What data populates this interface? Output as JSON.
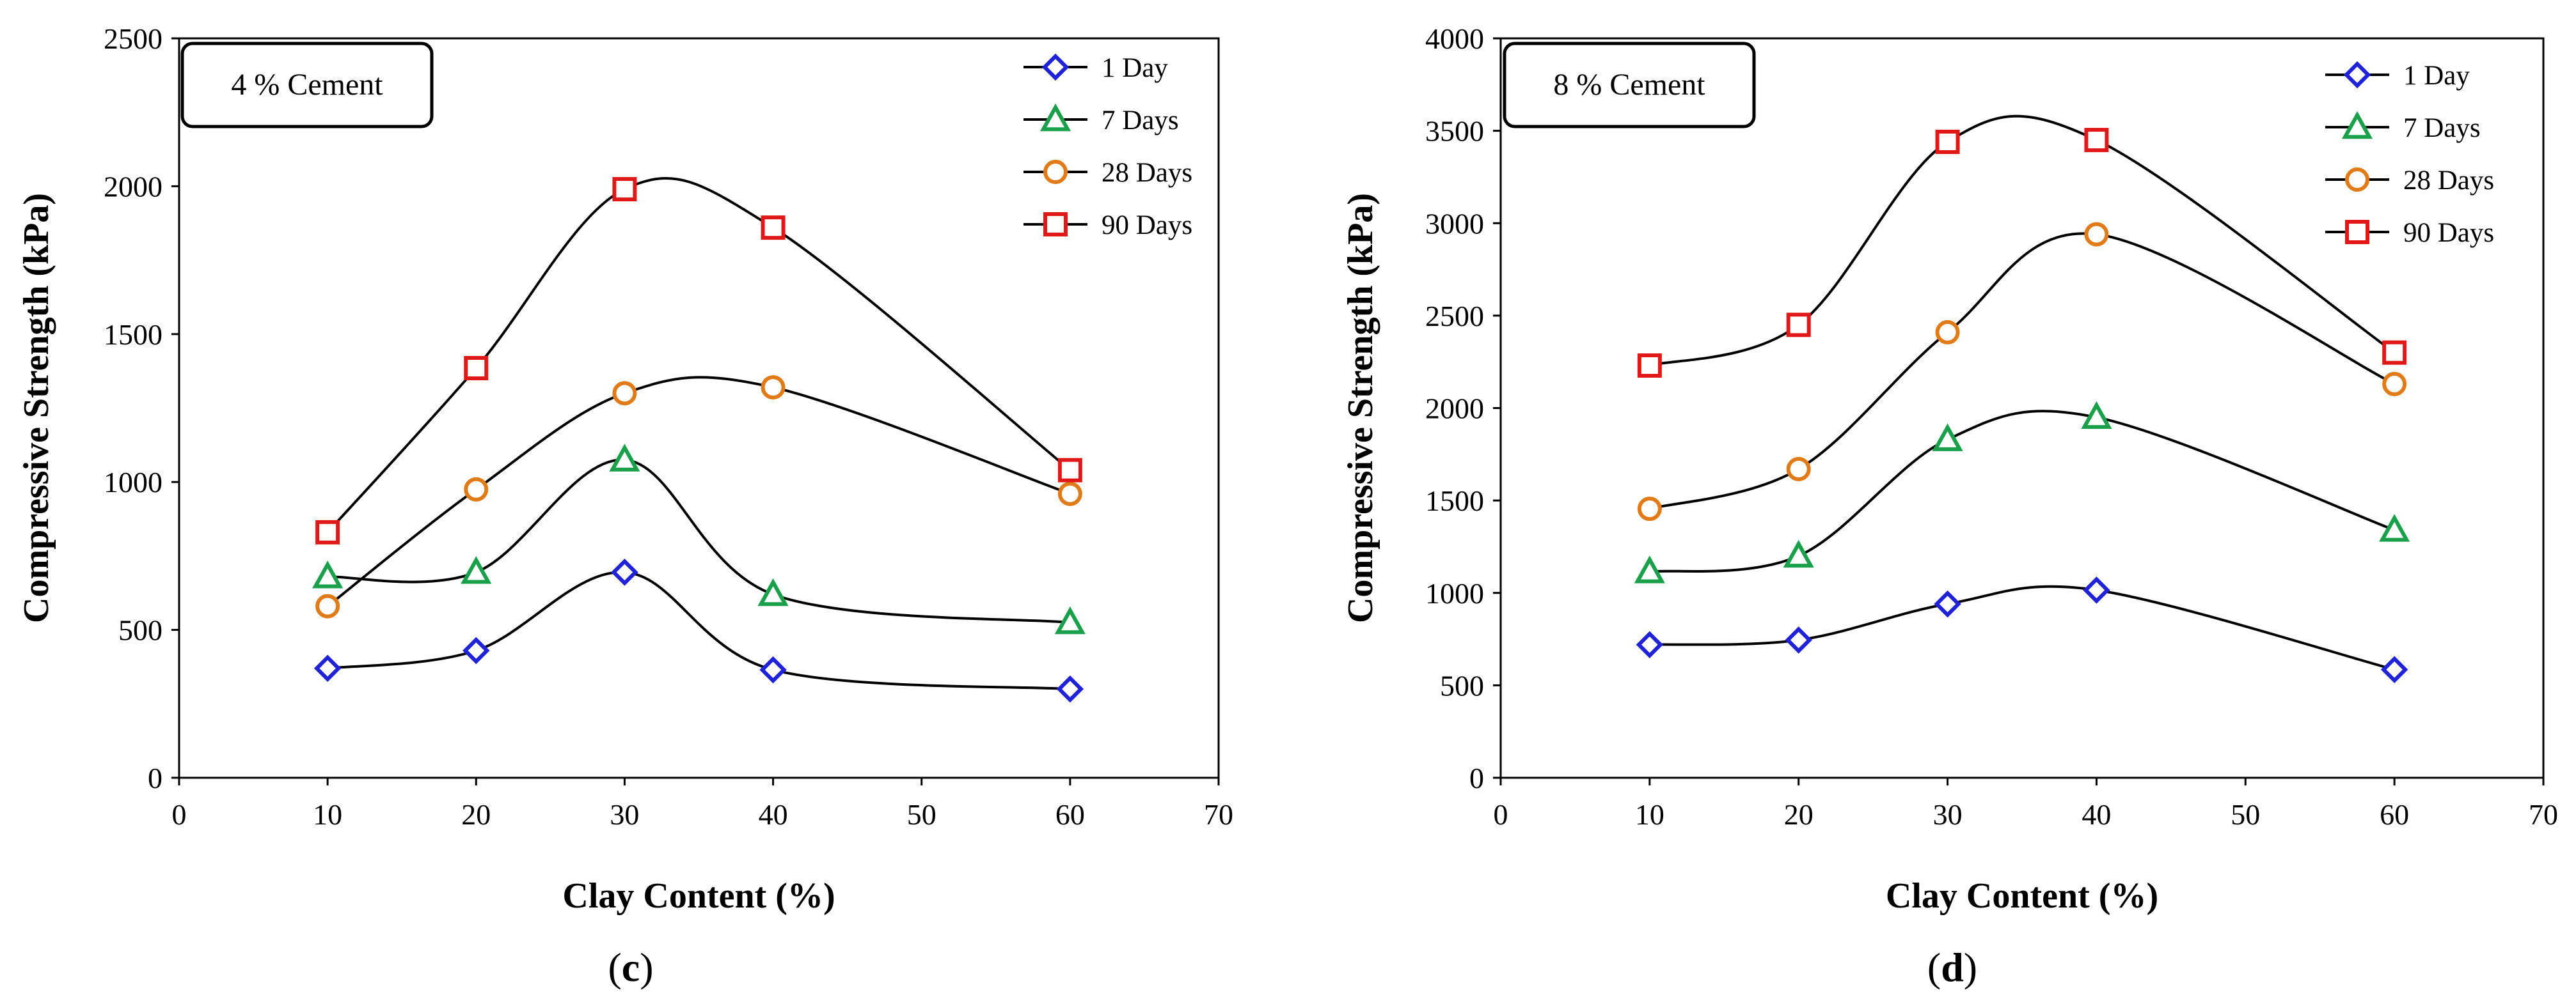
{
  "chart_data": [
    {
      "type": "line",
      "panel_label": "c",
      "inset_label": "4 % Cement",
      "xlabel": "Clay Content (%)",
      "ylabel": "Compressive Strength (kPa)",
      "xlim": [
        0,
        70
      ],
      "ylim": [
        0,
        2500
      ],
      "x_ticks": [
        0,
        10,
        20,
        30,
        40,
        50,
        60,
        70
      ],
      "y_ticks": [
        0,
        500,
        1000,
        1500,
        2000,
        2500
      ],
      "grid": false,
      "legend_position": "top-right",
      "x": [
        10,
        20,
        30,
        40,
        60
      ],
      "series": [
        {
          "name": "1 Day",
          "marker": "diamond",
          "color": "#1f22d6",
          "values": [
            370,
            430,
            695,
            365,
            300
          ]
        },
        {
          "name": "7 Days",
          "marker": "triangle",
          "color": "#1aa04a",
          "values": [
            680,
            695,
            1075,
            620,
            525
          ]
        },
        {
          "name": "28 Days",
          "marker": "circle",
          "color": "#e07b18",
          "values": [
            580,
            975,
            1300,
            1320,
            960
          ]
        },
        {
          "name": "90 Days",
          "marker": "square",
          "color": "#e01818",
          "values": [
            830,
            1385,
            1990,
            1860,
            1040
          ]
        }
      ]
    },
    {
      "type": "line",
      "panel_label": "d",
      "inset_label": "8 % Cement",
      "xlabel": "Clay Content (%)",
      "ylabel": "Compressive Strength (kPa)",
      "xlim": [
        0,
        70
      ],
      "ylim": [
        0,
        4000
      ],
      "x_ticks": [
        0,
        10,
        20,
        30,
        40,
        50,
        60,
        70
      ],
      "y_ticks": [
        0,
        500,
        1000,
        1500,
        2000,
        2500,
        3000,
        3500,
        4000
      ],
      "grid": false,
      "legend_position": "top-right",
      "x": [
        10,
        20,
        30,
        40,
        60
      ],
      "series": [
        {
          "name": "1 Day",
          "marker": "diamond",
          "color": "#1f22d6",
          "values": [
            720,
            745,
            940,
            1015,
            585
          ]
        },
        {
          "name": "7 Days",
          "marker": "triangle",
          "color": "#1aa04a",
          "values": [
            1115,
            1200,
            1830,
            1950,
            1340
          ]
        },
        {
          "name": "28 Days",
          "marker": "circle",
          "color": "#e07b18",
          "values": [
            1455,
            1670,
            2410,
            2940,
            2130
          ]
        },
        {
          "name": "90 Days",
          "marker": "square",
          "color": "#e01818",
          "values": [
            2230,
            2450,
            3440,
            3450,
            2300
          ]
        }
      ]
    }
  ],
  "panel_labels": [
    "(c)",
    "(d)"
  ]
}
